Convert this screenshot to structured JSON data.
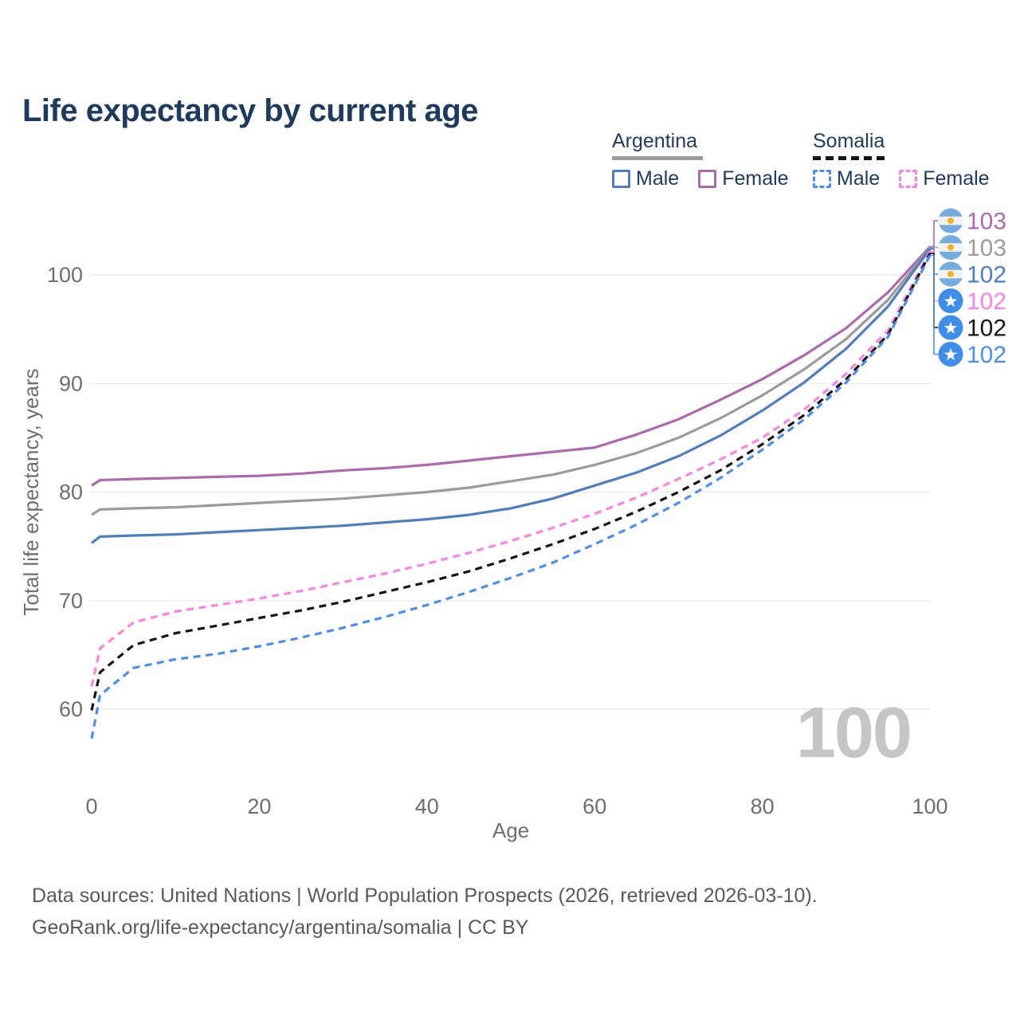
{
  "title": "Life expectancy by current age",
  "watermark_age": "100",
  "legend": {
    "argentina": {
      "country": "Argentina",
      "male": "Male",
      "female": "Female"
    },
    "somalia": {
      "country": "Somalia",
      "male": "Male",
      "female": "Female"
    }
  },
  "footer": {
    "line1": "Data sources: United Nations | World Population Prospects (2026, retrieved 2026-03-10).",
    "line2": "GeoRank.org/life-expectancy/argentina/somalia | CC BY"
  },
  "colors": {
    "title": "#1d3b5f",
    "legend_text": "#1d3b5f",
    "axis_text": "#6e6e6e",
    "grid": "#e8e8e8",
    "watermark": "#c5c5c5",
    "footer_text": "#595959",
    "argentina_male": "#4d7ec0",
    "argentina_female": "#ae68b0",
    "argentina_both": "#9b9b9b",
    "somalia_male": "#4a8ef2",
    "somalia_female": "#ff82e2",
    "somalia_both": "#141414",
    "argentina_flag_blue": "#74acdf",
    "argentina_flag_sun": "#f0b41e",
    "somalia_flag_blue": "#3f8deb"
  },
  "chart_data": {
    "type": "line",
    "title": "Life expectancy by current age",
    "xlabel": "Age",
    "ylabel": "Total life expectancy, years",
    "xticks": [
      0,
      20,
      40,
      60,
      80,
      100
    ],
    "yticks": [
      60,
      70,
      80,
      90,
      100
    ],
    "xlim": [
      0,
      100
    ],
    "ylim": [
      56,
      104
    ],
    "grid": "horizontal-only",
    "legend_position": "top-right",
    "x": [
      0,
      1,
      5,
      10,
      15,
      20,
      25,
      30,
      35,
      40,
      45,
      50,
      55,
      60,
      65,
      70,
      75,
      80,
      85,
      90,
      95,
      100
    ],
    "series": [
      {
        "name": "Argentina Female",
        "country": "Argentina",
        "sex": "Female",
        "line": "solid",
        "color": "#ae68b0",
        "end_label": "103",
        "values": [
          80.6,
          81.1,
          81.2,
          81.3,
          81.4,
          81.5,
          81.7,
          82.0,
          82.2,
          82.5,
          82.9,
          83.3,
          83.7,
          84.1,
          85.3,
          86.7,
          88.5,
          90.4,
          92.6,
          95.1,
          98.4,
          102.6
        ]
      },
      {
        "name": "Argentina Both sexes",
        "country": "Argentina",
        "sex": "Both",
        "line": "solid",
        "color": "#9b9b9b",
        "end_label": "103",
        "values": [
          77.9,
          78.4,
          78.5,
          78.6,
          78.8,
          79.0,
          79.2,
          79.4,
          79.7,
          80.0,
          80.4,
          81.0,
          81.6,
          82.5,
          83.6,
          85.0,
          86.8,
          88.9,
          91.3,
          94.1,
          97.7,
          102.5
        ]
      },
      {
        "name": "Argentina Male",
        "country": "Argentina",
        "sex": "Male",
        "line": "solid",
        "color": "#4d7ec0",
        "end_label": "102",
        "values": [
          75.3,
          75.9,
          76.0,
          76.1,
          76.3,
          76.5,
          76.7,
          76.9,
          77.2,
          77.5,
          77.9,
          78.5,
          79.4,
          80.6,
          81.8,
          83.3,
          85.2,
          87.5,
          90.1,
          93.2,
          97.1,
          102.4
        ]
      },
      {
        "name": "Somalia Female",
        "country": "Somalia",
        "sex": "Female",
        "line": "dashed",
        "color": "#ff82e2",
        "end_label": "102",
        "values": [
          62.1,
          65.6,
          68.0,
          69.0,
          69.6,
          70.2,
          70.9,
          71.7,
          72.5,
          73.4,
          74.4,
          75.5,
          76.7,
          78.0,
          79.5,
          81.2,
          83.0,
          85.0,
          87.6,
          90.9,
          94.9,
          102.2
        ]
      },
      {
        "name": "Somalia Both sexes",
        "country": "Somalia",
        "sex": "Both",
        "line": "dashed",
        "color": "#141414",
        "end_label": "102",
        "values": [
          59.9,
          63.4,
          65.9,
          67.0,
          67.7,
          68.4,
          69.1,
          69.9,
          70.8,
          71.7,
          72.7,
          73.9,
          75.2,
          76.6,
          78.2,
          80.0,
          82.0,
          84.4,
          87.1,
          90.4,
          94.5,
          102.0
        ]
      },
      {
        "name": "Somalia Male",
        "country": "Somalia",
        "sex": "Male",
        "line": "dashed",
        "color": "#4a8ef2",
        "end_label": "102",
        "values": [
          57.3,
          61.3,
          63.8,
          64.6,
          65.1,
          65.8,
          66.6,
          67.5,
          68.5,
          69.6,
          70.8,
          72.1,
          73.5,
          75.2,
          77.0,
          79.0,
          81.3,
          83.9,
          86.7,
          90.1,
          94.3,
          101.8
        ]
      }
    ]
  }
}
